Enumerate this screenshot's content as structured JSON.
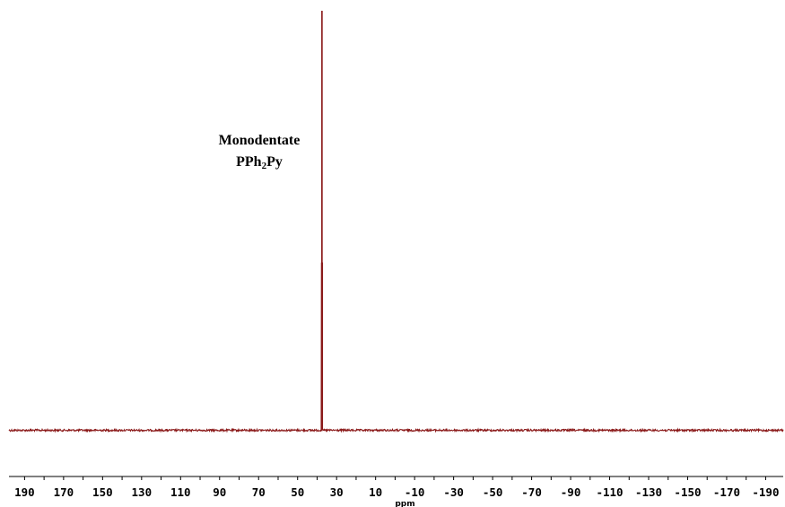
{
  "chart_data": {
    "type": "line",
    "title": "",
    "xlabel": "ppm",
    "ylabel": "",
    "xlim": [
      198,
      -199
    ],
    "x_reversed": true,
    "y_axis_visible": false,
    "grid": false,
    "line_color": "#8b1a1a",
    "baseline_noise": true,
    "x_ticks": [
      "190",
      "170",
      "150",
      "130",
      "110",
      "90",
      "70",
      "50",
      "30",
      "10",
      "-10",
      "-30",
      "-50",
      "-70",
      "-90",
      "-110",
      "-130",
      "-150",
      "-170",
      "-190"
    ],
    "x_tick_values": [
      190,
      170,
      150,
      130,
      110,
      90,
      70,
      50,
      30,
      10,
      -10,
      -30,
      -50,
      -70,
      -90,
      -110,
      -130,
      -150,
      -170,
      -190
    ],
    "minor_tick_step": 10,
    "series": [
      {
        "peaks": [
          {
            "x": 37.5,
            "height": 1.0
          }
        ]
      }
    ],
    "annotations": [
      {
        "text": "Monodentate",
        "line": 1
      },
      {
        "line": 2,
        "parts": [
          {
            "text": "PPh"
          },
          {
            "text": "2",
            "sub": true
          },
          {
            "text": "Py"
          }
        ]
      }
    ]
  }
}
